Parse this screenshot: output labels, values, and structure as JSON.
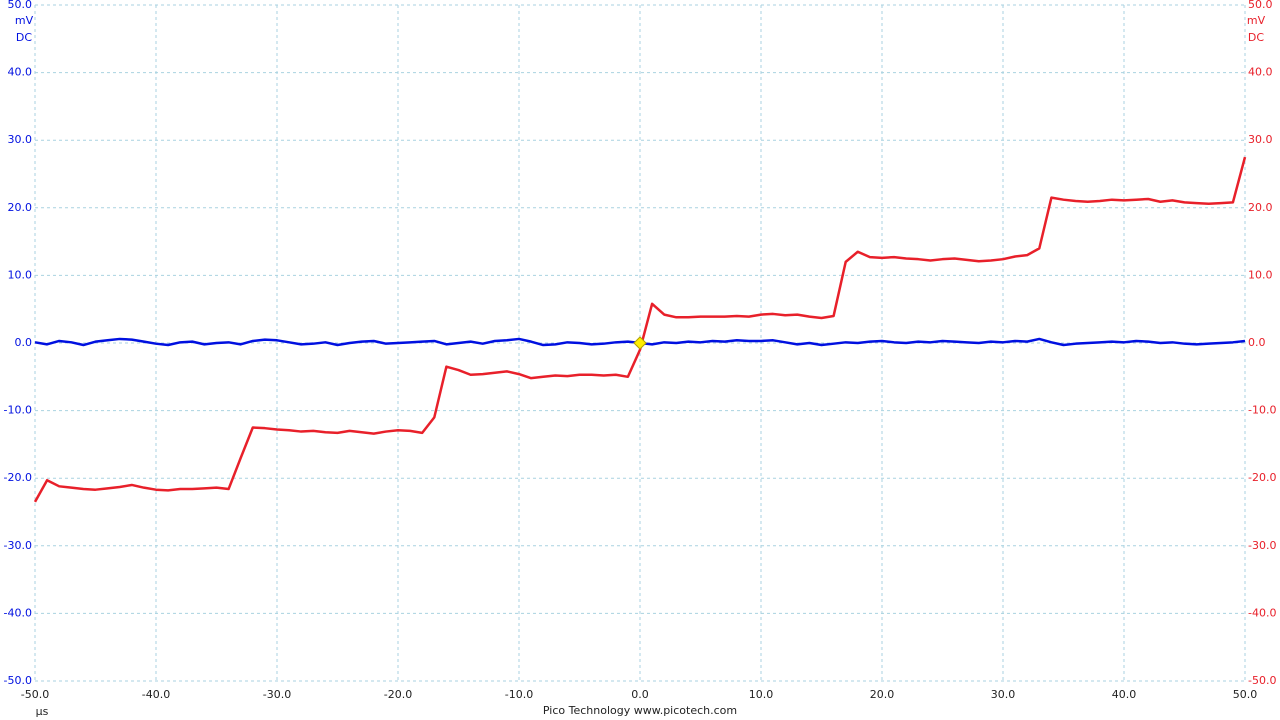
{
  "chart_data": {
    "type": "line",
    "x_unit": "µs",
    "footer": "Pico Technology  www.picotech.com",
    "y_unit": "mV",
    "y_coupling": "DC",
    "y2_unit": "mV",
    "y2_coupling": "DC",
    "xlim": [
      -50,
      50
    ],
    "xticks": [
      {
        "value": -50,
        "label": "-50.0"
      },
      {
        "value": -40,
        "label": "-40.0"
      },
      {
        "value": -30,
        "label": "-30.0"
      },
      {
        "value": -20,
        "label": "-20.0"
      },
      {
        "value": -10,
        "label": "-10.0"
      },
      {
        "value": 0,
        "label": "0.0"
      },
      {
        "value": 10,
        "label": "10.0"
      },
      {
        "value": 20,
        "label": "20.0"
      },
      {
        "value": 30,
        "label": "30.0"
      },
      {
        "value": 40,
        "label": "40.0"
      },
      {
        "value": 50,
        "label": "50.0"
      }
    ],
    "ylim": [
      -50,
      50
    ],
    "yticks": [
      {
        "value": -50,
        "label": "-50.0"
      },
      {
        "value": -40,
        "label": "-40.0"
      },
      {
        "value": -30,
        "label": "-30.0"
      },
      {
        "value": -20,
        "label": "-20.0"
      },
      {
        "value": -10,
        "label": "-10.0"
      },
      {
        "value": 0,
        "label": "0.0"
      },
      {
        "value": 10,
        "label": "10.0"
      },
      {
        "value": 20,
        "label": "20.0"
      },
      {
        "value": 30,
        "label": "30.0"
      },
      {
        "value": 40,
        "label": "40.0"
      },
      {
        "value": 50,
        "label": "50.0"
      }
    ],
    "y2lim": [
      -50,
      50
    ],
    "y2ticks": [
      {
        "value": -50,
        "label": "-50.0"
      },
      {
        "value": -40,
        "label": "-40.0"
      },
      {
        "value": -30,
        "label": "-30.0"
      },
      {
        "value": -20,
        "label": "-20.0"
      },
      {
        "value": -10,
        "label": "-10.0"
      },
      {
        "value": 0,
        "label": "0.0"
      },
      {
        "value": 10,
        "label": "10.0"
      },
      {
        "value": 20,
        "label": "20.0"
      },
      {
        "value": 30,
        "label": "30.0"
      },
      {
        "value": 40,
        "label": "40.0"
      },
      {
        "value": 50,
        "label": "50.0"
      }
    ],
    "grid": true,
    "x": [
      -50,
      -49,
      -48,
      -47,
      -46,
      -45,
      -44,
      -43,
      -42,
      -41,
      -40,
      -39,
      -38,
      -37,
      -36,
      -35,
      -34,
      -33,
      -32,
      -31,
      -30,
      -29,
      -28,
      -27,
      -26,
      -25,
      -24,
      -23,
      -22,
      -21,
      -20,
      -19,
      -18,
      -17,
      -16,
      -15,
      -14,
      -13,
      -12,
      -11,
      -10,
      -9,
      -8,
      -7,
      -6,
      -5,
      -4,
      -3,
      -2,
      -1,
      0,
      1,
      2,
      3,
      4,
      5,
      6,
      7,
      8,
      9,
      10,
      11,
      12,
      13,
      14,
      15,
      16,
      17,
      18,
      19,
      20,
      21,
      22,
      23,
      24,
      25,
      26,
      27,
      28,
      29,
      30,
      31,
      32,
      33,
      34,
      35,
      36,
      37,
      38,
      39,
      40,
      41,
      42,
      43,
      44,
      45,
      46,
      47,
      48,
      49,
      50
    ],
    "series": [
      {
        "color": "#0010e0",
        "axis": "y",
        "values": [
          0.1,
          -0.2,
          0.3,
          0.1,
          -0.3,
          0.2,
          0.4,
          0.6,
          0.5,
          0.2,
          -0.1,
          -0.3,
          0.1,
          0.2,
          -0.2,
          0.0,
          0.1,
          -0.2,
          0.3,
          0.5,
          0.4,
          0.1,
          -0.2,
          -0.1,
          0.1,
          -0.3,
          0.0,
          0.2,
          0.3,
          -0.1,
          0.0,
          0.1,
          0.2,
          0.3,
          -0.2,
          0.0,
          0.2,
          -0.1,
          0.3,
          0.4,
          0.6,
          0.2,
          -0.3,
          -0.2,
          0.1,
          0.0,
          -0.2,
          -0.1,
          0.1,
          0.2,
          0.0,
          -0.2,
          0.1,
          0.0,
          0.2,
          0.1,
          0.3,
          0.2,
          0.4,
          0.3,
          0.3,
          0.4,
          0.1,
          -0.2,
          0.0,
          -0.3,
          -0.1,
          0.1,
          0.0,
          0.2,
          0.3,
          0.1,
          0.0,
          0.2,
          0.1,
          0.3,
          0.2,
          0.1,
          0.0,
          0.2,
          0.1,
          0.3,
          0.2,
          0.6,
          0.1,
          -0.3,
          -0.1,
          0.0,
          0.1,
          0.2,
          0.1,
          0.3,
          0.2,
          0.0,
          0.1,
          -0.1,
          -0.2,
          -0.1,
          0.0,
          0.1,
          0.3
        ]
      },
      {
        "color": "#e8202a",
        "axis": "y2",
        "values": [
          -23.5,
          -20.3,
          -21.2,
          -21.4,
          -21.6,
          -21.7,
          -21.5,
          -21.3,
          -21.0,
          -21.4,
          -21.7,
          -21.8,
          -21.6,
          -21.6,
          -21.5,
          -21.4,
          -21.6,
          -17.0,
          -12.5,
          -12.6,
          -12.8,
          -12.9,
          -13.1,
          -13.0,
          -13.2,
          -13.3,
          -13.0,
          -13.2,
          -13.4,
          -13.1,
          -12.9,
          -13.0,
          -13.3,
          -11.0,
          -3.5,
          -4.0,
          -4.7,
          -4.6,
          -4.4,
          -4.2,
          -4.6,
          -5.2,
          -5.0,
          -4.8,
          -4.9,
          -4.7,
          -4.7,
          -4.8,
          -4.7,
          -5.0,
          -1.0,
          5.8,
          4.2,
          3.8,
          3.8,
          3.9,
          3.9,
          3.9,
          4.0,
          3.9,
          4.2,
          4.3,
          4.1,
          4.2,
          3.9,
          3.7,
          4.0,
          12.0,
          13.5,
          12.7,
          12.6,
          12.7,
          12.5,
          12.4,
          12.2,
          12.4,
          12.5,
          12.3,
          12.1,
          12.2,
          12.4,
          12.8,
          13.0,
          14.0,
          21.5,
          21.2,
          21.0,
          20.9,
          21.0,
          21.2,
          21.1,
          21.2,
          21.3,
          20.9,
          21.1,
          20.8,
          20.7,
          20.6,
          20.7,
          20.8,
          27.5
        ]
      }
    ]
  }
}
